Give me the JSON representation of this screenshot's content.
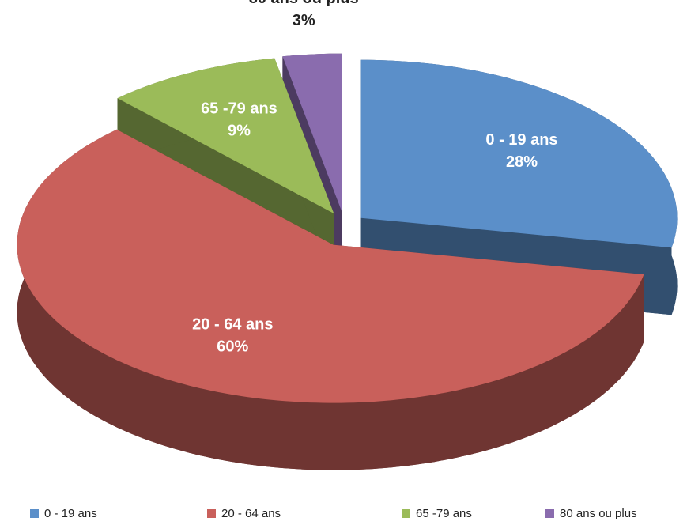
{
  "chart_data": {
    "type": "pie3d",
    "categories": [
      "0 - 19 ans",
      "20 - 64 ans",
      "65 -79 ans",
      "80 ans ou plus"
    ],
    "values": [
      28,
      60,
      9,
      3
    ],
    "value_labels": [
      "28%",
      "60%",
      "9%",
      "3%"
    ],
    "colors": [
      "#5b8fc9",
      "#c9605b",
      "#9bbb59",
      "#8a6cae"
    ],
    "legend": "bottom"
  }
}
